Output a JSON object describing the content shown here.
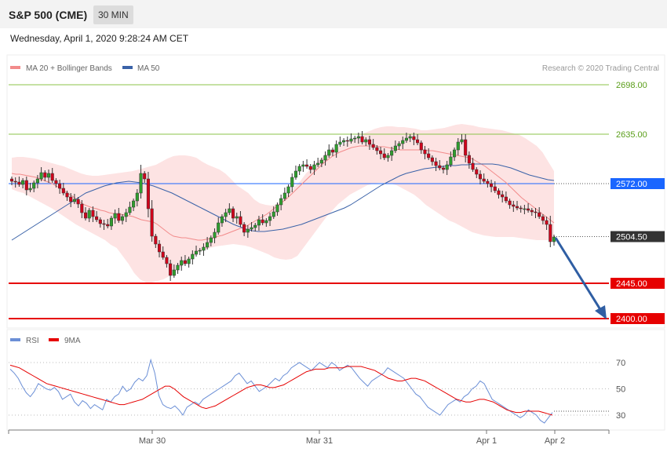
{
  "header": {
    "title": "S&P 500 (CME)",
    "timeframe": "30 MIN"
  },
  "datetime": "Wednesday, April 1, 2020 9:28:24 AM CET",
  "legend": {
    "ma20": "MA 20 + Bollinger Bands",
    "ma50": "MA 50",
    "credit": "Research © 2020 Trading Central",
    "rsi": "RSI",
    "ma9": "9MA"
  },
  "colors": {
    "bull": "#2e9e2e",
    "bear": "#d0021b",
    "ma20": "#f28b8b",
    "ma50": "#3a62a8",
    "band": "#fde3e3",
    "support": "#e60000",
    "pivot": "#1a66ff",
    "resistance": "#8bc34a",
    "arrow": "#2f5ea3",
    "rsi": "#6b8fd6"
  },
  "chart_data": [
    {
      "type": "line",
      "title": "",
      "ylim": [
        2390,
        2710
      ],
      "x_ticks": [
        "Mar 30",
        "Mar 31",
        "Apr 1",
        "Apr 2"
      ],
      "levels": [
        {
          "value": "2698.00",
          "kind": "resistance"
        },
        {
          "value": "2635.00",
          "kind": "resistance"
        },
        {
          "value": "2572.00",
          "kind": "pivot"
        },
        {
          "value": "2504.50",
          "kind": "last"
        },
        {
          "value": "2445.00",
          "kind": "support"
        },
        {
          "value": "2400.00",
          "kind": "support"
        }
      ],
      "closes": [
        2575,
        2574,
        2571,
        2576,
        2564,
        2566,
        2573,
        2578,
        2586,
        2580,
        2585,
        2576,
        2572,
        2566,
        2560,
        2555,
        2549,
        2552,
        2546,
        2535,
        2528,
        2538,
        2530,
        2526,
        2521,
        2520,
        2518,
        2528,
        2534,
        2525,
        2530,
        2535,
        2542,
        2550,
        2560,
        2585,
        2578,
        2540,
        2505,
        2495,
        2485,
        2478,
        2470,
        2455,
        2462,
        2468,
        2474,
        2470,
        2476,
        2482,
        2486,
        2487,
        2491,
        2497,
        2503,
        2510,
        2522,
        2530,
        2535,
        2540,
        2528,
        2530,
        2520,
        2510,
        2514,
        2516,
        2519,
        2526,
        2522,
        2525,
        2530,
        2536,
        2545,
        2553,
        2560,
        2568,
        2580,
        2588,
        2594,
        2596,
        2594,
        2590,
        2596,
        2598,
        2602,
        2608,
        2615,
        2612,
        2622,
        2625,
        2627,
        2626,
        2629,
        2630,
        2632,
        2625,
        2628,
        2622,
        2618,
        2614,
        2610,
        2605,
        2608,
        2614,
        2620,
        2623,
        2627,
        2630,
        2632,
        2628,
        2624,
        2615,
        2610,
        2605,
        2600,
        2595,
        2592,
        2590,
        2596,
        2606,
        2615,
        2625,
        2628,
        2608,
        2598,
        2590,
        2584,
        2578,
        2575,
        2572,
        2568,
        2563,
        2558,
        2555,
        2550,
        2545,
        2543,
        2541,
        2540,
        2540,
        2538,
        2536,
        2535,
        2530,
        2525,
        2520,
        2498,
        2504
      ],
      "ma20": [
        2585,
        2584,
        2584,
        2583,
        2582,
        2581,
        2580,
        2578,
        2576,
        2574,
        2572,
        2569,
        2566,
        2563,
        2559,
        2556,
        2552,
        2548,
        2545,
        2543,
        2541,
        2540,
        2538,
        2537,
        2535,
        2534,
        2533,
        2533,
        2532,
        2531,
        2530,
        2528,
        2526,
        2525,
        2524,
        2523,
        2520,
        2516,
        2512,
        2508,
        2505,
        2504,
        2503,
        2503,
        2502,
        2501,
        2500,
        2500,
        2501,
        2502,
        2503,
        2505,
        2506,
        2508,
        2510,
        2512,
        2514,
        2516,
        2518,
        2521,
        2524,
        2527,
        2530,
        2533,
        2537,
        2541,
        2545,
        2549,
        2553,
        2558,
        2563,
        2568,
        2573,
        2578,
        2583,
        2588,
        2593,
        2598,
        2602,
        2606,
        2609,
        2612,
        2614,
        2616,
        2618,
        2619,
        2620,
        2620,
        2620,
        2620,
        2620,
        2619,
        2619,
        2618,
        2617,
        2616,
        2615,
        2615,
        2615,
        2615,
        2615,
        2615,
        2615,
        2614,
        2614,
        2613,
        2612,
        2611,
        2610,
        2609,
        2608,
        2607,
        2606,
        2605,
        2603,
        2600,
        2597,
        2594,
        2590,
        2586,
        2582,
        2578,
        2574,
        2569,
        2564,
        2559,
        2554,
        2550,
        2546,
        2542,
        2538,
        2534,
        2530,
        2526,
        2522
      ],
      "ma50": [
        2500,
        2505,
        2510,
        2515,
        2520,
        2525,
        2530,
        2535,
        2540,
        2545,
        2550,
        2555,
        2560,
        2563,
        2566,
        2569,
        2571,
        2573,
        2574,
        2575,
        2574,
        2573,
        2571,
        2569,
        2566,
        2563,
        2560,
        2556,
        2552,
        2548,
        2544,
        2540,
        2536,
        2532,
        2528,
        2524,
        2520,
        2517,
        2514,
        2512,
        2511,
        2511,
        2512,
        2513,
        2514,
        2516,
        2518,
        2520,
        2523,
        2526,
        2529,
        2532,
        2535,
        2538,
        2541,
        2545,
        2550,
        2555,
        2560,
        2565,
        2570,
        2574,
        2578,
        2582,
        2585,
        2587,
        2589,
        2591,
        2592,
        2593,
        2594,
        2595,
        2595,
        2596,
        2596,
        2597,
        2597,
        2597,
        2597,
        2596,
        2594,
        2592,
        2589,
        2586,
        2583,
        2581,
        2579,
        2577,
        2576
      ],
      "bb_upper": [
        2605,
        2606,
        2606,
        2605,
        2604,
        2602,
        2600,
        2598,
        2596,
        2594,
        2591,
        2588,
        2585,
        2583,
        2582,
        2582,
        2583,
        2584,
        2585,
        2586,
        2587,
        2588,
        2590,
        2592,
        2594,
        2596,
        2600,
        2604,
        2607,
        2608,
        2608,
        2607,
        2605,
        2600,
        2596,
        2593,
        2590,
        2585,
        2578,
        2570,
        2565,
        2560,
        2552,
        2547,
        2545,
        2544,
        2546,
        2552,
        2560,
        2568,
        2575,
        2585,
        2592,
        2600,
        2607,
        2612,
        2616,
        2620,
        2624,
        2628,
        2632,
        2636,
        2639,
        2642,
        2644,
        2645,
        2645,
        2644,
        2644,
        2643,
        2642,
        2640,
        2640,
        2641,
        2642,
        2643,
        2645,
        2647,
        2648,
        2647,
        2646,
        2644,
        2643,
        2642,
        2641,
        2640,
        2638,
        2636,
        2634,
        2630,
        2625,
        2620,
        2612,
        2600,
        2588
      ],
      "bb_lower": [
        2565,
        2562,
        2560,
        2556,
        2552,
        2548,
        2544,
        2540,
        2535,
        2530,
        2525,
        2520,
        2516,
        2512,
        2508,
        2504,
        2500,
        2494,
        2490,
        2480,
        2470,
        2458,
        2450,
        2446,
        2446,
        2448,
        2450,
        2454,
        2460,
        2466,
        2472,
        2478,
        2484,
        2488,
        2490,
        2492,
        2493,
        2494,
        2495,
        2494,
        2493,
        2491,
        2488,
        2485,
        2482,
        2478,
        2476,
        2475,
        2476,
        2480,
        2490,
        2500,
        2510,
        2520,
        2530,
        2538,
        2546,
        2552,
        2558,
        2562,
        2566,
        2570,
        2572,
        2573,
        2573,
        2572,
        2570,
        2566,
        2562,
        2558,
        2552,
        2545,
        2540,
        2535,
        2530,
        2525,
        2522,
        2518,
        2514,
        2510,
        2508,
        2506,
        2505,
        2504,
        2504,
        2504,
        2504,
        2503,
        2502,
        2501,
        2500,
        2500,
        2500,
        2500
      ]
    },
    {
      "type": "line",
      "title": "",
      "ylim": [
        22,
        78
      ],
      "y_ticks": [
        "70",
        "50",
        "30"
      ],
      "series": [
        {
          "name": "RSI",
          "values": [
            65,
            62,
            58,
            52,
            47,
            44,
            48,
            54,
            52,
            50,
            49,
            51,
            48,
            42,
            44,
            46,
            40,
            37,
            41,
            39,
            35,
            38,
            36,
            34,
            42,
            40,
            44,
            46,
            52,
            48,
            50,
            55,
            58,
            56,
            60,
            72,
            62,
            45,
            38,
            36,
            35,
            37,
            34,
            30,
            36,
            38,
            40,
            38,
            42,
            44,
            46,
            48,
            50,
            52,
            54,
            56,
            60,
            62,
            58,
            54,
            56,
            52,
            48,
            50,
            52,
            55,
            58,
            56,
            60,
            62,
            66,
            68,
            70,
            68,
            66,
            64,
            67,
            70,
            68,
            66,
            70,
            68,
            64,
            66,
            68,
            66,
            62,
            58,
            55,
            52,
            56,
            58,
            60,
            62,
            66,
            64,
            62,
            60,
            58,
            54,
            50,
            46,
            44,
            40,
            36,
            34,
            32,
            30,
            34,
            38,
            40,
            42,
            40,
            44,
            46,
            50,
            52,
            56,
            54,
            48,
            42,
            40,
            38,
            36,
            34,
            32,
            30,
            28,
            30,
            34,
            32,
            30,
            26,
            24,
            28,
            32
          ]
        },
        {
          "name": "9MA",
          "values": [
            68,
            67,
            66,
            64,
            62,
            60,
            58,
            56,
            54,
            53,
            52,
            51,
            50,
            49,
            48,
            47,
            46,
            45,
            44,
            43,
            42,
            41,
            40,
            39,
            38,
            38,
            39,
            40,
            41,
            42,
            44,
            46,
            48,
            50,
            52,
            52,
            50,
            47,
            44,
            42,
            40,
            38,
            36,
            35,
            36,
            37,
            39,
            41,
            43,
            45,
            47,
            49,
            51,
            52,
            53,
            53,
            52,
            51,
            51,
            52,
            53,
            55,
            57,
            59,
            61,
            63,
            64,
            65,
            65,
            65,
            66,
            66,
            66,
            66,
            67,
            67,
            67,
            67,
            66,
            65,
            64,
            62,
            60,
            58,
            57,
            56,
            56,
            57,
            58,
            58,
            57,
            56,
            54,
            52,
            50,
            48,
            46,
            44,
            42,
            41,
            40,
            40,
            41,
            42,
            42,
            41,
            40,
            38,
            36,
            34,
            33,
            32,
            32,
            33,
            33,
            33,
            33,
            32,
            31,
            30
          ]
        }
      ]
    }
  ]
}
